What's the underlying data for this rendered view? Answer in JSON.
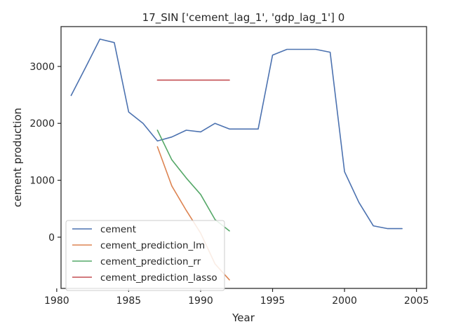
{
  "chart_data": {
    "type": "line",
    "title": "17_SIN ['cement_lag_1', 'gdp_lag_1'] 0",
    "xlabel": "Year",
    "ylabel": "cement production",
    "xlim": [
      1980.3,
      2005.7
    ],
    "ylim": [
      -900,
      3700
    ],
    "xticks": [
      1980,
      1985,
      1990,
      1995,
      2000,
      2005
    ],
    "yticks": [
      0,
      1000,
      2000,
      3000
    ],
    "grid": false,
    "legend_position": "lower-left",
    "series": [
      {
        "name": "cement",
        "color": "#4c72b0",
        "x": [
          1981,
          1982,
          1983,
          1984,
          1985,
          1986,
          1987,
          1988,
          1989,
          1990,
          1991,
          1992,
          1993,
          1994,
          1995,
          1996,
          1997,
          1998,
          1999,
          2000,
          2001,
          2002,
          2003,
          2004
        ],
        "y": [
          2490,
          2980,
          3480,
          3420,
          2200,
          2000,
          1690,
          1760,
          1880,
          1850,
          2000,
          1900,
          1900,
          1900,
          3200,
          3300,
          3300,
          3300,
          3250,
          1150,
          610,
          200,
          150,
          150
        ]
      },
      {
        "name": "cement_prediction_lm",
        "color": "#dd8452",
        "x": [
          1987,
          1988,
          1989,
          1990,
          1991,
          1992
        ],
        "y": [
          1590,
          900,
          470,
          70,
          -470,
          -750
        ]
      },
      {
        "name": "cement_prediction_rr",
        "color": "#55a868",
        "x": [
          1987,
          1988,
          1989,
          1990,
          1991,
          1992
        ],
        "y": [
          1880,
          1360,
          1040,
          750,
          310,
          110
        ]
      },
      {
        "name": "cement_prediction_lasso",
        "color": "#c44e52",
        "x": [
          1987,
          1988,
          1989,
          1990,
          1991,
          1992
        ],
        "y": [
          2760,
          2760,
          2760,
          2760,
          2760,
          2760
        ]
      }
    ]
  }
}
